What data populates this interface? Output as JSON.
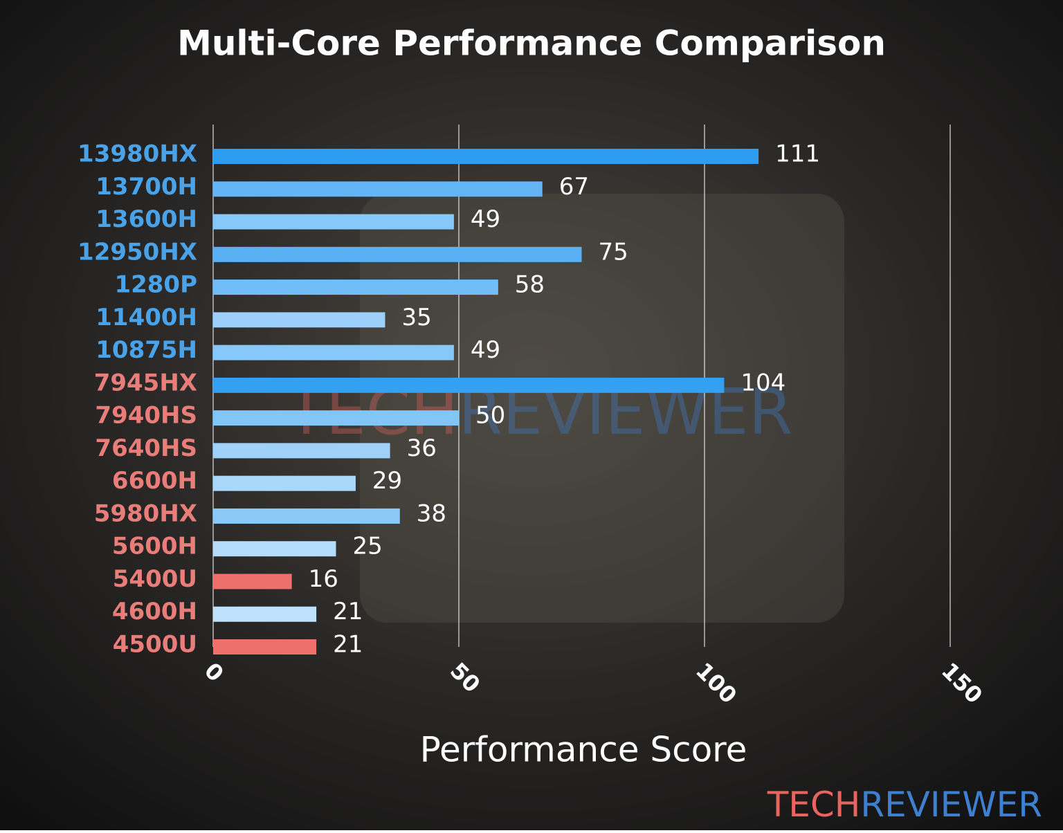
{
  "chart_data": {
    "type": "bar",
    "orientation": "horizontal",
    "title": "Multi-Core Performance Comparison",
    "x_label": "Performance Score",
    "categories": [
      "13980HX",
      "13700H",
      "13600H",
      "12950HX",
      "1280P",
      "11400H",
      "10875H",
      "7945HX",
      "7940HS",
      "7640HS",
      "6600H",
      "5980HX",
      "5600H",
      "5400U",
      "4600H",
      "4500U"
    ],
    "category_colors": [
      "#4aa3e8",
      "#4aa3e8",
      "#4aa3e8",
      "#4aa3e8",
      "#4aa3e8",
      "#4aa3e8",
      "#4aa3e8",
      "#e87d7a",
      "#e87d7a",
      "#e87d7a",
      "#e87d7a",
      "#e87d7a",
      "#e87d7a",
      "#e87d7a",
      "#e87d7a",
      "#e87d7a"
    ],
    "values": [
      111,
      67,
      49,
      75,
      58,
      35,
      49,
      104,
      50,
      36,
      29,
      38,
      25,
      16,
      21,
      21
    ],
    "colors": [
      "#2e9cf0",
      "#64b5f6",
      "#86c8f9",
      "#5ab0f5",
      "#70bdf7",
      "#9ccff9",
      "#86c8f9",
      "#33a0f1",
      "#82c6f8",
      "#a0d2f9",
      "#aad8fb",
      "#8cc9f7",
      "#b5ddfb",
      "#ef6f6c",
      "#bfe2fc",
      "#ef6f6c"
    ],
    "xlim": [
      0,
      150
    ],
    "xticks": [
      0,
      50,
      100,
      150
    ],
    "grid": true,
    "watermark": [
      "TECH",
      "REVIEWER"
    ],
    "watermark_colors": [
      "#e8645f",
      "#3f7fd0"
    ]
  }
}
